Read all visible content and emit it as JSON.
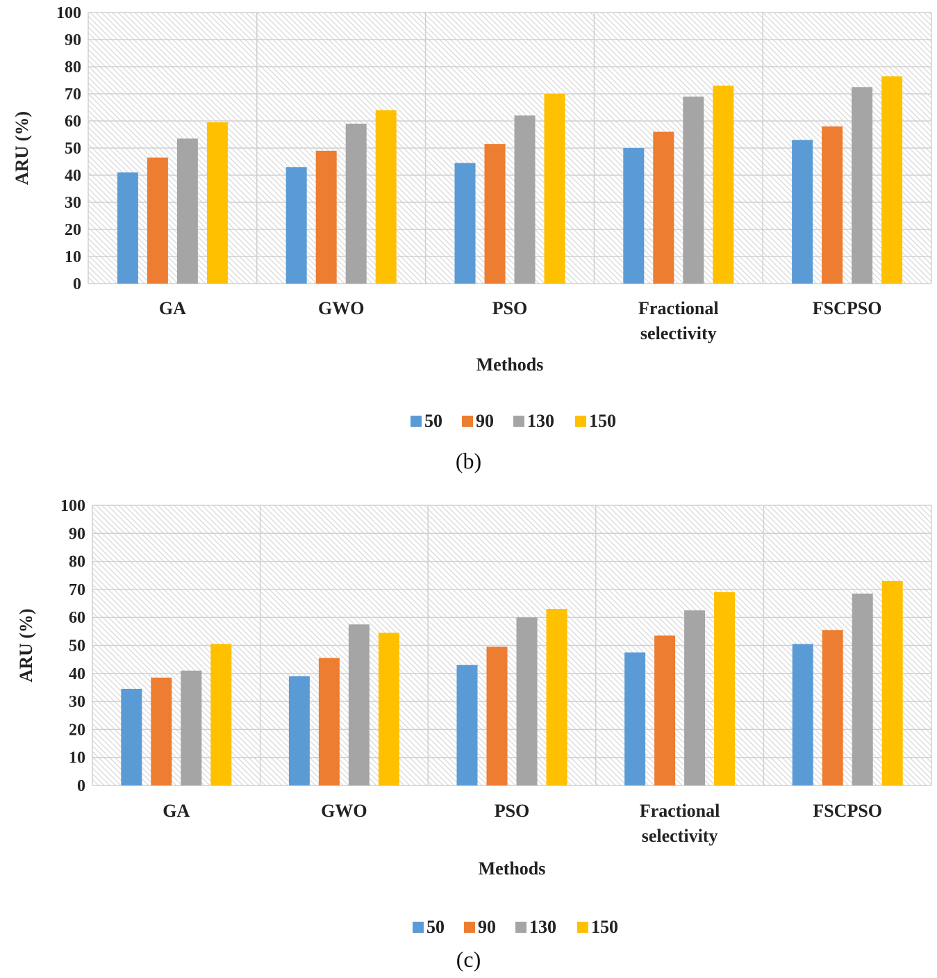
{
  "chart_data": [
    {
      "type": "bar",
      "caption": "(b)",
      "categories": [
        "GA",
        "GWO",
        "PSO",
        "Fractional selectivity",
        "FSCPSO"
      ],
      "category_lines": [
        [
          "GA"
        ],
        [
          "GWO"
        ],
        [
          "PSO"
        ],
        [
          "Fractional",
          "selectivity"
        ],
        [
          "FSCPSO"
        ]
      ],
      "series": [
        {
          "name": "50",
          "values": [
            41,
            43,
            44.5,
            50,
            53
          ]
        },
        {
          "name": "90",
          "values": [
            46.5,
            49,
            51.5,
            56,
            58
          ]
        },
        {
          "name": "130",
          "values": [
            53.5,
            59,
            62,
            69,
            72.5
          ]
        },
        {
          "name": "150",
          "values": [
            59.5,
            64,
            70,
            73,
            76.5
          ]
        }
      ],
      "xlabel": "Methods",
      "ylabel": "ARU (%)",
      "ylim": [
        0,
        100
      ],
      "yticks": [
        "0",
        "10",
        "20",
        "30",
        "40",
        "50",
        "60",
        "70",
        "80",
        "90",
        "100"
      ],
      "legend_position": "bottom"
    },
    {
      "type": "bar",
      "caption": "(c)",
      "categories": [
        "GA",
        "GWO",
        "PSO",
        "Fractional selectivity",
        "FSCPSO"
      ],
      "category_lines": [
        [
          "GA"
        ],
        [
          "GWO"
        ],
        [
          "PSO"
        ],
        [
          "Fractional",
          "selectivity"
        ],
        [
          "FSCPSO"
        ]
      ],
      "series": [
        {
          "name": "50",
          "values": [
            34.5,
            39,
            43,
            47.5,
            50.5
          ]
        },
        {
          "name": "90",
          "values": [
            38.5,
            45.5,
            49.5,
            53.5,
            55.5
          ]
        },
        {
          "name": "130",
          "values": [
            41,
            57.5,
            60,
            62.5,
            68.5
          ]
        },
        {
          "name": "150",
          "values": [
            50.5,
            54.5,
            63,
            69,
            73
          ]
        }
      ],
      "xlabel": "Methods",
      "ylabel": "ARU (%)",
      "ylim": [
        0,
        100
      ],
      "yticks": [
        "0",
        "10",
        "20",
        "30",
        "40",
        "50",
        "60",
        "70",
        "80",
        "90",
        "100"
      ],
      "legend_position": "bottom"
    }
  ],
  "colors": {
    "series": [
      "#5b9bd5",
      "#ed7d31",
      "#a5a5a5",
      "#ffc000"
    ],
    "grid": "#d0d0d0",
    "hatch": "#d9d9d9"
  }
}
